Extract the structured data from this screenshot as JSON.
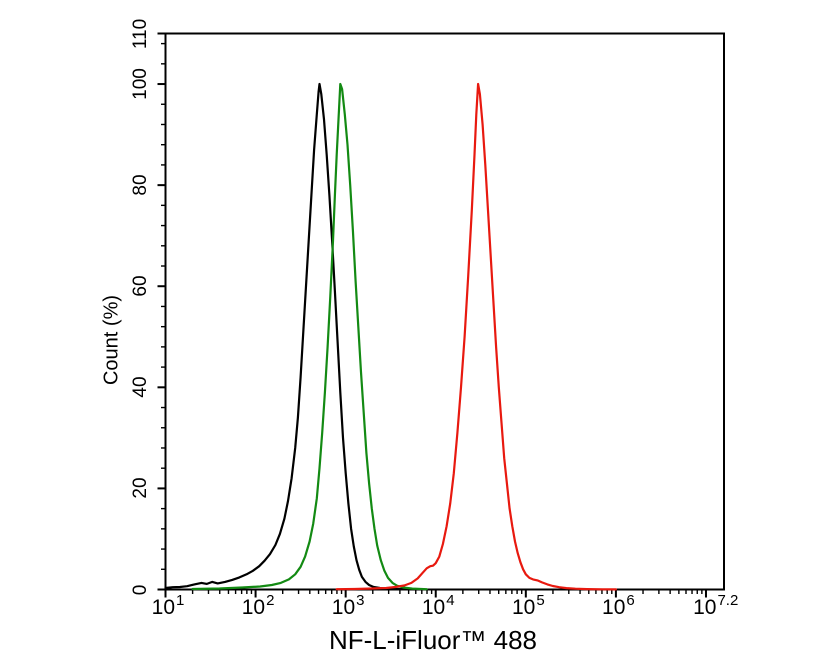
{
  "figure": {
    "background": "#ffffff",
    "border_color": "#000000"
  },
  "chart_data": {
    "type": "line",
    "subtype": "flow-cytometry-overlay-histogram",
    "title": "",
    "xlabel": "NF-L-iFluor™ 488",
    "ylabel": "Count (%)",
    "x_scale": "log10",
    "x_range_log10": [
      1,
      7.2
    ],
    "ylim": [
      0,
      110
    ],
    "grid": false,
    "legend": "none",
    "x_major_tick_logs": [
      1,
      2,
      3,
      4,
      5,
      6,
      7
    ],
    "x_tick_labels": [
      {
        "log": 1.0,
        "base": "10",
        "exp": "1"
      },
      {
        "log": 2.0,
        "base": "10",
        "exp": "2"
      },
      {
        "log": 3.0,
        "base": "10",
        "exp": "3"
      },
      {
        "log": 4.0,
        "base": "10",
        "exp": "4"
      },
      {
        "log": 5.0,
        "base": "10",
        "exp": "5"
      },
      {
        "log": 6.0,
        "base": "10",
        "exp": "6"
      },
      {
        "log": 7.08,
        "base": "10",
        "exp": "7.2"
      }
    ],
    "y_major_ticks": [
      0,
      20,
      40,
      60,
      80,
      100,
      110
    ],
    "y_minor_tick_step": 4,
    "series": [
      {
        "name": "black-curve",
        "color": "#000000",
        "peak_log10": 2.71,
        "peak_percent": 100,
        "points": [
          [
            1.0,
            0.3
          ],
          [
            1.08,
            0.45
          ],
          [
            1.16,
            0.5
          ],
          [
            1.24,
            0.65
          ],
          [
            1.32,
            1.0
          ],
          [
            1.4,
            1.3
          ],
          [
            1.46,
            1.1
          ],
          [
            1.52,
            1.5
          ],
          [
            1.58,
            1.2
          ],
          [
            1.66,
            1.5
          ],
          [
            1.74,
            1.9
          ],
          [
            1.82,
            2.4
          ],
          [
            1.9,
            3.0
          ],
          [
            1.97,
            3.7
          ],
          [
            2.04,
            4.6
          ],
          [
            2.1,
            5.7
          ],
          [
            2.16,
            7.0
          ],
          [
            2.22,
            8.8
          ],
          [
            2.27,
            11
          ],
          [
            2.32,
            14
          ],
          [
            2.36,
            17.5
          ],
          [
            2.4,
            22
          ],
          [
            2.44,
            28
          ],
          [
            2.47,
            34
          ],
          [
            2.5,
            42
          ],
          [
            2.53,
            51
          ],
          [
            2.56,
            60
          ],
          [
            2.59,
            69
          ],
          [
            2.62,
            78
          ],
          [
            2.65,
            87
          ],
          [
            2.68,
            94
          ],
          [
            2.7,
            98.5
          ],
          [
            2.71,
            100
          ],
          [
            2.73,
            98
          ],
          [
            2.76,
            93
          ],
          [
            2.79,
            86
          ],
          [
            2.82,
            78
          ],
          [
            2.85,
            69
          ],
          [
            2.88,
            59
          ],
          [
            2.91,
            49
          ],
          [
            2.94,
            39
          ],
          [
            2.97,
            30
          ],
          [
            3.0,
            23
          ],
          [
            3.03,
            17
          ],
          [
            3.06,
            12
          ],
          [
            3.09,
            8.5
          ],
          [
            3.12,
            5.8
          ],
          [
            3.15,
            3.9
          ],
          [
            3.18,
            2.5
          ],
          [
            3.22,
            1.5
          ],
          [
            3.26,
            0.9
          ],
          [
            3.31,
            0.5
          ],
          [
            3.38,
            0.3
          ],
          [
            3.48,
            0.15
          ],
          [
            3.65,
            0.08
          ],
          [
            3.85,
            0.04
          ]
        ]
      },
      {
        "name": "green-curve",
        "color": "#138a13",
        "peak_log10": 2.94,
        "peak_percent": 100,
        "points": [
          [
            1.3,
            0.1
          ],
          [
            1.6,
            0.2
          ],
          [
            1.85,
            0.4
          ],
          [
            2.05,
            0.6
          ],
          [
            2.18,
            0.9
          ],
          [
            2.28,
            1.3
          ],
          [
            2.37,
            2.0
          ],
          [
            2.44,
            3.0
          ],
          [
            2.5,
            4.5
          ],
          [
            2.55,
            6.5
          ],
          [
            2.6,
            9.5
          ],
          [
            2.64,
            13
          ],
          [
            2.68,
            18
          ],
          [
            2.71,
            24
          ],
          [
            2.74,
            31
          ],
          [
            2.77,
            39
          ],
          [
            2.8,
            48
          ],
          [
            2.83,
            58
          ],
          [
            2.86,
            69
          ],
          [
            2.88,
            78
          ],
          [
            2.9,
            86
          ],
          [
            2.92,
            93
          ],
          [
            2.94,
            100
          ],
          [
            2.96,
            99
          ],
          [
            2.99,
            94
          ],
          [
            3.02,
            88
          ],
          [
            3.05,
            80
          ],
          [
            3.08,
            71
          ],
          [
            3.11,
            61
          ],
          [
            3.14,
            52
          ],
          [
            3.17,
            43
          ],
          [
            3.2,
            35
          ],
          [
            3.23,
            27
          ],
          [
            3.26,
            21
          ],
          [
            3.29,
            16
          ],
          [
            3.32,
            12
          ],
          [
            3.35,
            8.7
          ],
          [
            3.39,
            5.8
          ],
          [
            3.43,
            3.7
          ],
          [
            3.47,
            2.3
          ],
          [
            3.52,
            1.3
          ],
          [
            3.57,
            0.75
          ],
          [
            3.64,
            0.4
          ],
          [
            3.74,
            0.18
          ],
          [
            3.9,
            0.05
          ]
        ]
      },
      {
        "name": "red-curve",
        "color": "#e8190f",
        "peak_log10": 4.47,
        "peak_percent": 100,
        "points": [
          [
            2.9,
            0.05
          ],
          [
            3.1,
            0.1
          ],
          [
            3.3,
            0.2
          ],
          [
            3.45,
            0.3
          ],
          [
            3.55,
            0.5
          ],
          [
            3.65,
            0.8
          ],
          [
            3.73,
            1.3
          ],
          [
            3.8,
            2.2
          ],
          [
            3.85,
            3.2
          ],
          [
            3.9,
            4.2
          ],
          [
            3.94,
            4.6
          ],
          [
            3.97,
            4.7
          ],
          [
            4.0,
            5.2
          ],
          [
            4.04,
            6.5
          ],
          [
            4.08,
            9
          ],
          [
            4.12,
            12.5
          ],
          [
            4.16,
            17
          ],
          [
            4.2,
            23
          ],
          [
            4.24,
            31
          ],
          [
            4.28,
            40
          ],
          [
            4.32,
            50
          ],
          [
            4.36,
            62
          ],
          [
            4.4,
            75
          ],
          [
            4.43,
            86
          ],
          [
            4.45,
            94
          ],
          [
            4.47,
            100
          ],
          [
            4.49,
            98
          ],
          [
            4.52,
            92
          ],
          [
            4.55,
            84
          ],
          [
            4.58,
            75
          ],
          [
            4.61,
            66
          ],
          [
            4.64,
            57
          ],
          [
            4.67,
            48
          ],
          [
            4.7,
            40
          ],
          [
            4.73,
            33
          ],
          [
            4.76,
            26
          ],
          [
            4.79,
            21
          ],
          [
            4.82,
            16
          ],
          [
            4.85,
            12.5
          ],
          [
            4.88,
            9.5
          ],
          [
            4.91,
            7.2
          ],
          [
            4.94,
            5.4
          ],
          [
            4.97,
            4.0
          ],
          [
            5.0,
            3.0
          ],
          [
            5.04,
            2.3
          ],
          [
            5.08,
            2.0
          ],
          [
            5.13,
            1.8
          ],
          [
            5.18,
            1.4
          ],
          [
            5.24,
            1.0
          ],
          [
            5.3,
            0.7
          ],
          [
            5.37,
            0.45
          ],
          [
            5.45,
            0.28
          ],
          [
            5.55,
            0.15
          ],
          [
            5.68,
            0.08
          ],
          [
            5.85,
            0.04
          ],
          [
            6.0,
            0.02
          ]
        ]
      }
    ]
  }
}
